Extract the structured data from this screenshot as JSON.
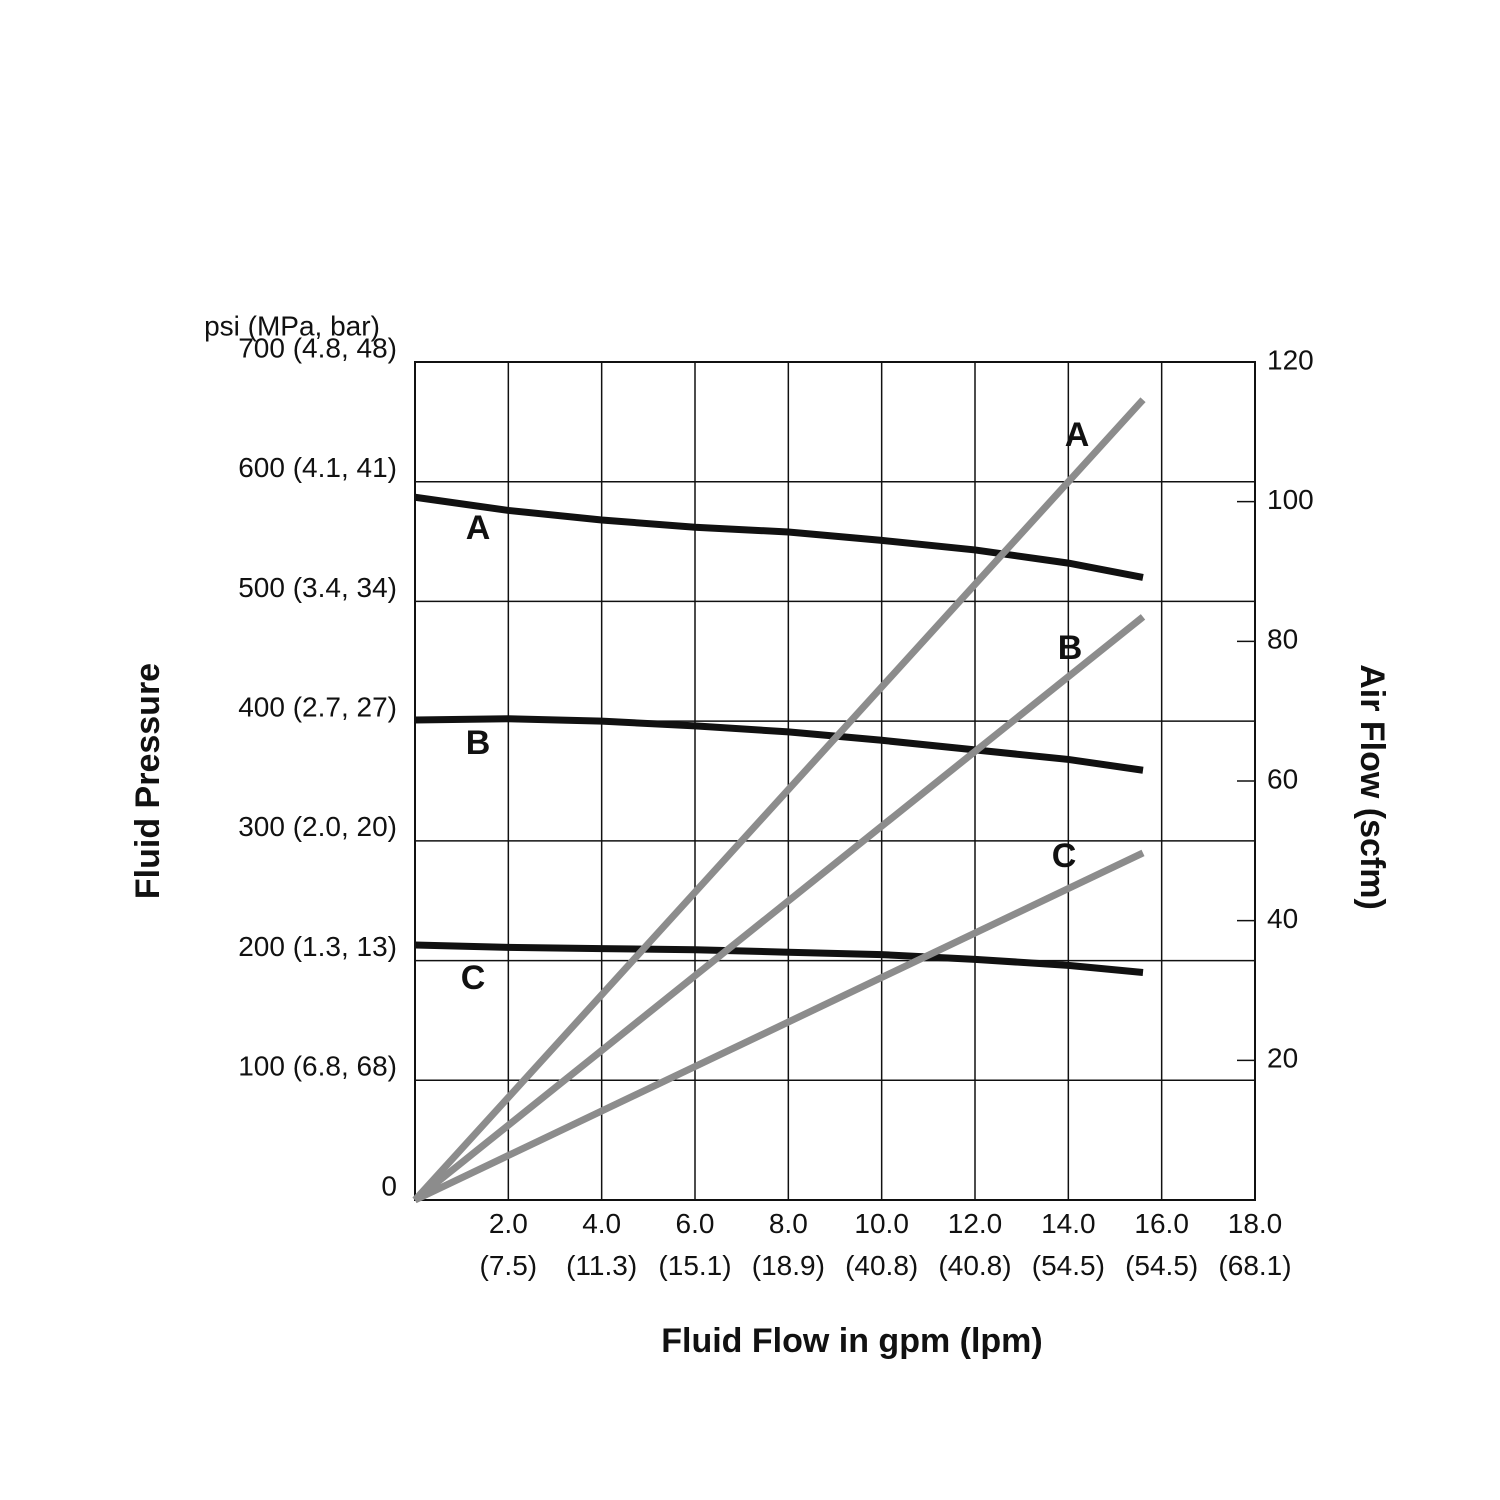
{
  "chart_data": {
    "type": "line",
    "y_unit": "psi (MPa, bar)",
    "y_label": "Fluid Pressure",
    "y2_label": "Air Flow (scfm)",
    "x_label": "Fluid Flow in gpm (lpm)",
    "xlim": [
      0,
      18
    ],
    "xticks": [
      {
        "value": 2,
        "label": "2.0 (7.5)"
      },
      {
        "value": 4,
        "label": "4.0 (11.3)"
      },
      {
        "value": 6,
        "label": "6.0 (15.1)"
      },
      {
        "value": 8,
        "label": "8.0 (18.9)"
      },
      {
        "value": 10,
        "label": "10.0 (40.8)"
      },
      {
        "value": 12,
        "label": "12.0 (40.8)"
      },
      {
        "value": 14,
        "label": "14.0 (54.5)"
      },
      {
        "value": 16,
        "label": "16.0 (54.5)"
      },
      {
        "value": 18,
        "label": "18.0 (68.1)"
      }
    ],
    "ylim": [
      0,
      700
    ],
    "yticks": [
      0,
      {
        "value": 100,
        "label": "100 (6.8, 68)"
      },
      {
        "value": 200,
        "label": "200 (1.3, 13)"
      },
      {
        "value": 300,
        "label": "300 (2.0, 20)"
      },
      {
        "value": 400,
        "label": "400 (2.7, 27)"
      },
      {
        "value": 500,
        "label": "500 (3.4, 34)"
      },
      {
        "value": 600,
        "label": "600 (4.1, 41)"
      },
      {
        "value": 700,
        "label": "700 (4.8, 48)"
      }
    ],
    "y2lim": [
      0,
      120
    ],
    "y2ticks": [
      20,
      40,
      60,
      80,
      100,
      120
    ],
    "grid": true,
    "series": [
      {
        "name": "A",
        "color": "#111111",
        "x": [
          0,
          2,
          4,
          6,
          8,
          10,
          12,
          14,
          15.6
        ],
        "values": [
          587,
          576,
          568,
          562,
          558,
          551,
          543,
          532,
          520
        ]
      },
      {
        "name": "B",
        "color": "#111111",
        "x": [
          0,
          2,
          4,
          6,
          8,
          10,
          12,
          14,
          15.6
        ],
        "values": [
          401,
          402,
          400,
          396,
          391,
          384,
          376,
          368,
          359
        ]
      },
      {
        "name": "C",
        "color": "#111111",
        "x": [
          0,
          2,
          4,
          6,
          8,
          10,
          12,
          14,
          15.6
        ],
        "values": [
          213,
          211,
          210,
          209,
          207,
          205,
          201,
          196,
          190
        ]
      },
      {
        "name": "A",
        "color": "#8c8c8c",
        "axis": "y2",
        "x": [
          0,
          15.6
        ],
        "values": [
          0,
          114.6
        ]
      },
      {
        "name": "B",
        "color": "#8c8c8c",
        "axis": "y2",
        "x": [
          0,
          15.6
        ],
        "values": [
          0,
          83.5
        ]
      },
      {
        "name": "C",
        "color": "#8c8c8c",
        "axis": "y2",
        "x": [
          0,
          15.6
        ],
        "values": [
          0,
          49.7
        ]
      }
    ]
  }
}
